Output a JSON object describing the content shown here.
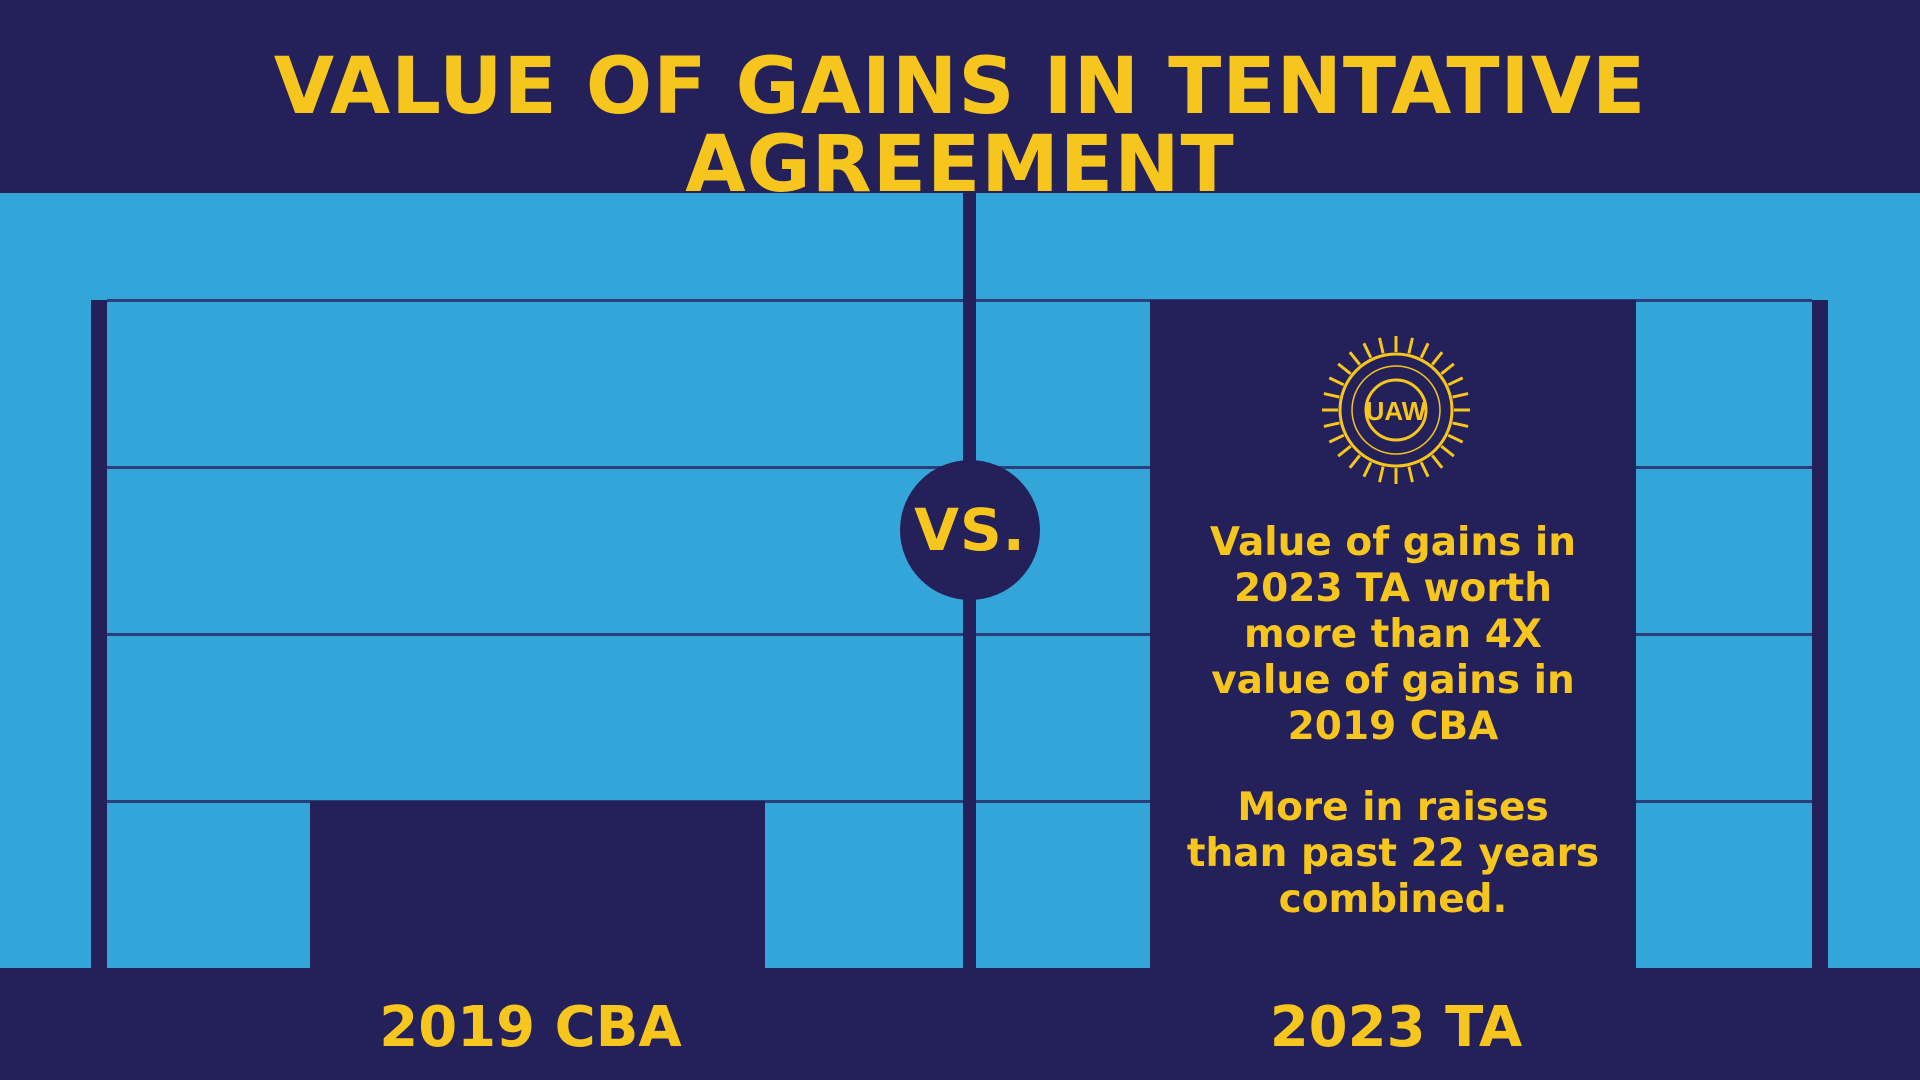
{
  "colors": {
    "navy": "#23205a",
    "light_blue": "#33a5d8",
    "yellow": "#f6c61e",
    "gridline": "#2a3f7a"
  },
  "header": {
    "title": "VALUE OF GAINS IN TENTATIVE AGREEMENT"
  },
  "divider": {
    "vs_label": "VS."
  },
  "logo": {
    "icon": "uaw-seal-icon",
    "text": "UAW"
  },
  "chart_data": {
    "type": "bar",
    "title": "VALUE OF GAINS IN TENTATIVE AGREEMENT",
    "categories": [
      "2019 CBA",
      "2023 TA"
    ],
    "values": [
      1,
      4
    ],
    "ylim": [
      0,
      4
    ],
    "grid": true,
    "legend": "none",
    "annotations": {
      "line1": "Value of gains in",
      "line2": "2023 TA worth",
      "line3": "more than 4X",
      "line4": "value of gains in",
      "line5": "2019 CBA",
      "line6": "More in raises",
      "line7": "than past 22 years",
      "line8": "combined."
    }
  }
}
